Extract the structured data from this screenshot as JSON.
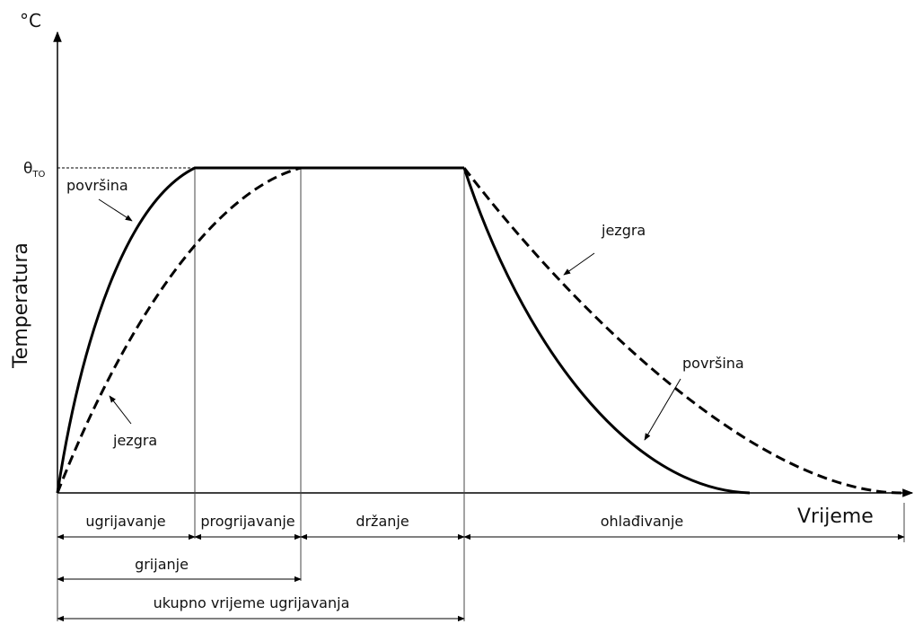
{
  "axis": {
    "y_unit": "°C",
    "y_label": "Temperatura",
    "x_label": "Vrijeme",
    "level_symbol": "θ",
    "level_subscript": "TO"
  },
  "curve_labels": {
    "heating_surface": "površina",
    "heating_core": "jezgra",
    "cooling_core": "jezgra",
    "cooling_surface": "površina"
  },
  "phases": {
    "ugrijavanje": "ugrijavanje",
    "progrijavanje": "progrijavanje",
    "drzanje": "držanje",
    "ohladivanje": "ohlađivanje"
  },
  "spans": {
    "grijanje": "grijanje",
    "ukupno": "ukupno vrijeme ugrijavanja"
  }
}
